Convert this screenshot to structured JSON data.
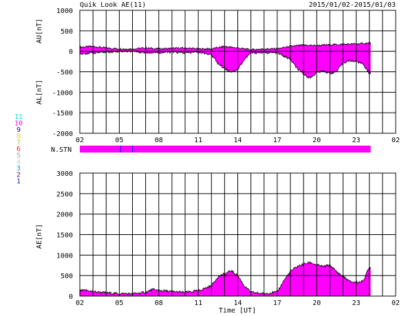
{
  "header": {
    "title": "Quik Look AE(11)",
    "date_range": "2015/01/02-2015/01/03"
  },
  "station_legend": {
    "labels": [
      "11",
      "10",
      "9",
      "8",
      "7",
      "6",
      "5",
      "4",
      "3",
      "2",
      "1"
    ],
    "colors": [
      "#00e5e5",
      "#ff00ff",
      "#0000cc",
      "#ffd000",
      "#9acd32",
      "#ff2020",
      "#a0a0a0",
      "#c8c8c8",
      "#00a8a8",
      "#800080",
      "#2020a0"
    ]
  },
  "colors": {
    "fill": "#ff00ff",
    "grid": "#000000",
    "station_mark": "#0000ff"
  },
  "chart_data": [
    {
      "type": "area",
      "ylabel_top": "AU[nT]",
      "ylabel_bottom": "AL[nT]",
      "ylim": [
        -2000,
        1000
      ],
      "yticks": [
        "1000",
        "500",
        "0",
        "-500",
        "-1000",
        "-1500",
        "-2000"
      ],
      "xlim": [
        2,
        26
      ],
      "xticks": [
        "02",
        "05",
        "08",
        "11",
        "14",
        "17",
        "20",
        "23",
        "02"
      ],
      "grid": true,
      "data_end_hour": 24.1,
      "series": [
        {
          "name": "AU",
          "x": [
            2,
            3,
            4,
            5,
            6,
            7,
            8,
            9,
            10,
            11,
            12,
            13,
            14,
            15,
            16,
            17,
            18,
            19,
            20,
            21,
            22,
            23,
            24
          ],
          "values": [
            100,
            120,
            80,
            60,
            60,
            80,
            60,
            70,
            80,
            60,
            60,
            120,
            80,
            40,
            60,
            60,
            120,
            150,
            140,
            160,
            170,
            180,
            200
          ]
        },
        {
          "name": "AL",
          "x": [
            2,
            3,
            4,
            5,
            6,
            7,
            8,
            9,
            10,
            11,
            12,
            12.5,
            13,
            13.5,
            14,
            14.5,
            15,
            16,
            17,
            18,
            18.5,
            19,
            19.5,
            20,
            20.5,
            21,
            21.5,
            22,
            22.5,
            23,
            23.5,
            24
          ],
          "values": [
            -60,
            -40,
            -20,
            0,
            0,
            -30,
            -30,
            -20,
            -40,
            -20,
            -80,
            -300,
            -420,
            -500,
            -440,
            -200,
            -40,
            -30,
            -40,
            -200,
            -420,
            -560,
            -650,
            -520,
            -480,
            -540,
            -500,
            -280,
            -230,
            -250,
            -300,
            -550
          ]
        }
      ]
    },
    {
      "type": "bar",
      "label": "N.STN",
      "value": 11,
      "x_start": 2,
      "x_end": 24.1,
      "marks_at_hours": [
        5.1,
        6.0
      ]
    },
    {
      "type": "area",
      "ylabel": "AE[nT]",
      "xlabel": "Time [UT]",
      "ylim": [
        0,
        3000
      ],
      "yticks": [
        "3000",
        "2500",
        "2000",
        "1500",
        "1000",
        "500",
        "0"
      ],
      "xlim": [
        2,
        26
      ],
      "xticks": [
        "02",
        "05",
        "08",
        "11",
        "14",
        "17",
        "20",
        "23",
        "02"
      ],
      "grid": true,
      "series": [
        {
          "name": "AE",
          "x": [
            2,
            2.5,
            3,
            4,
            5,
            6,
            7,
            7.5,
            8,
            9,
            10,
            11,
            12,
            12.5,
            13,
            13.5,
            14,
            14.5,
            15,
            16,
            17,
            17.5,
            18,
            18.5,
            19,
            19.5,
            20,
            20.5,
            21,
            21.5,
            22,
            22.5,
            23,
            23.5,
            24
          ],
          "values": [
            130,
            140,
            110,
            80,
            60,
            60,
            90,
            160,
            140,
            110,
            90,
            130,
            250,
            480,
            540,
            620,
            500,
            250,
            90,
            60,
            100,
            380,
            600,
            720,
            780,
            820,
            760,
            720,
            760,
            600,
            480,
            360,
            330,
            360,
            700
          ]
        }
      ]
    }
  ]
}
